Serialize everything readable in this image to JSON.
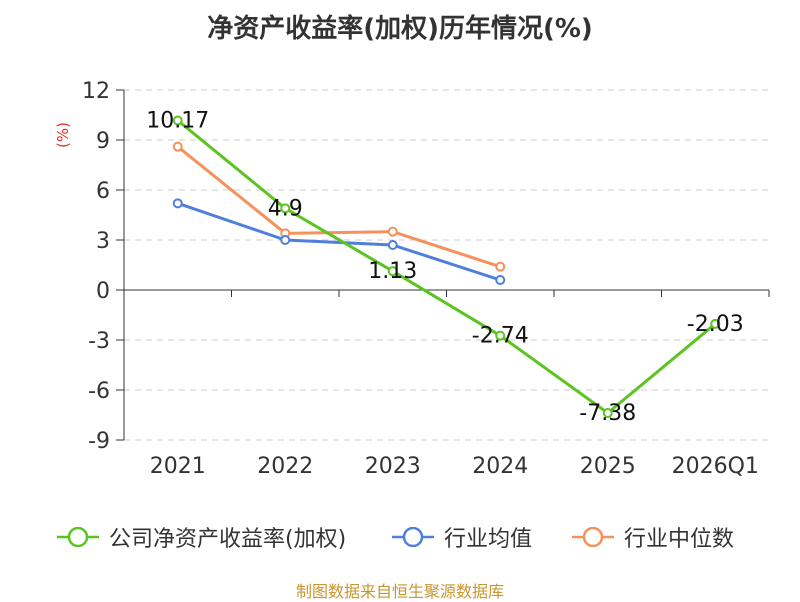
{
  "title": "净资产收益率(加权)历年情况(%)",
  "footer": "制图数据来自恒生聚源数据库",
  "chart_data": {
    "type": "line",
    "title": "净资产收益率(加权)历年情况(%)",
    "ylabel": "(%)",
    "xlabel": "",
    "categories": [
      "2021",
      "2022",
      "2023",
      "2024",
      "2025",
      "2026Q1"
    ],
    "ylim": [
      -9,
      12
    ],
    "yticks": [
      12,
      9,
      6,
      3,
      0,
      -3,
      -6,
      -9
    ],
    "grid": true,
    "legend_position": "bottom",
    "series": [
      {
        "name": "公司净资产收益率(加权)",
        "color": "#5cc421",
        "values": [
          10.17,
          4.9,
          1.13,
          -2.74,
          -7.38,
          -2.03
        ],
        "labels": [
          "10.17",
          "4.9",
          "1.13",
          "-2.74",
          "-7.38",
          "-2.03"
        ]
      },
      {
        "name": "行业均值",
        "color": "#4f7fdc",
        "values": [
          5.2,
          3.0,
          2.7,
          0.6,
          null,
          null
        ]
      },
      {
        "name": "行业中位数",
        "color": "#f5915a",
        "values": [
          8.6,
          3.4,
          3.5,
          1.4,
          null,
          null
        ]
      }
    ]
  }
}
